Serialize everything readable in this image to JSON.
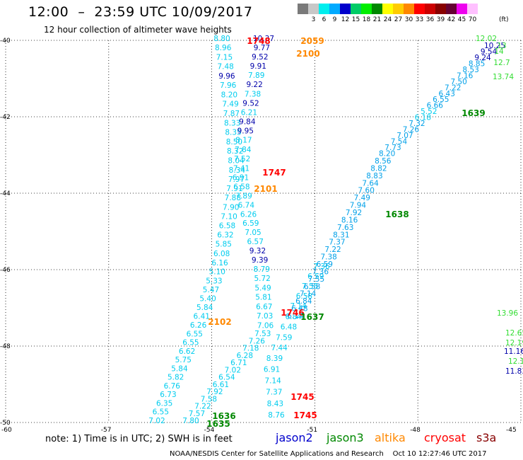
{
  "title": "12:00  –  23:59 UTC 10/09/2017",
  "subtitle": "12 hour collection of altimeter wave heights",
  "colorbar": {
    "unit": "(ft)",
    "bins": [
      {
        "label": "",
        "color": "#7a7a7a"
      },
      {
        "label": "3",
        "color": "#c8c8c8"
      },
      {
        "label": "6",
        "color": "#00eeee"
      },
      {
        "label": "9",
        "color": "#00aaff"
      },
      {
        "label": "12",
        "color": "#0000cc"
      },
      {
        "label": "15",
        "color": "#00cc66"
      },
      {
        "label": "18",
        "color": "#00ee00"
      },
      {
        "label": "21",
        "color": "#008800"
      },
      {
        "label": "24",
        "color": "#ffff00"
      },
      {
        "label": "27",
        "color": "#ffcc00"
      },
      {
        "label": "30",
        "color": "#ff8800"
      },
      {
        "label": "33",
        "color": "#ff0000"
      },
      {
        "label": "36",
        "color": "#cc0000"
      },
      {
        "label": "39",
        "color": "#880000"
      },
      {
        "label": "42",
        "color": "#660033"
      },
      {
        "label": "45",
        "color": "#ee00ee"
      },
      {
        "label": "70",
        "color": "#ffc0ff"
      }
    ]
  },
  "map": {
    "lon_range": [
      -60,
      -45
    ],
    "lat_range": [
      -50,
      -40
    ],
    "lat_ticks": [
      "-40",
      "-42",
      "-44",
      "-46",
      "-48",
      "-50"
    ],
    "lon_ticks": [
      "-60",
      "-57",
      "-54",
      "-51",
      "-48",
      "-45"
    ],
    "grid": "dotted"
  },
  "satellite_colors": {
    "jason2": "#0000cc",
    "jason3": "#008800",
    "altika": "#ff8800",
    "cryosat": "#ff0000",
    "s3a": "#880000",
    "band_light": "#00ccee",
    "band_mid": "#00a0e8",
    "band_dark": "#0000aa",
    "band_green": "#33dd33"
  },
  "tracks": {
    "track_a": {
      "values": [
        "8.80",
        "8.96",
        "7.15",
        "7.48",
        "9.96",
        "7.96",
        "8.20",
        "7.49",
        "7.87",
        "8.33",
        "8.35",
        "8.50",
        "8.32",
        "8.04",
        "8.34",
        "7.97",
        "7.91",
        "7.88",
        "7.90",
        "7.10",
        "6.58",
        "6.32",
        "5.85",
        "6.08",
        "6.16",
        "5.10",
        "5.33",
        "5.47",
        "5.40",
        "5.84",
        "6.41",
        "6.26",
        "6.55",
        "6.55",
        "6.62",
        "5.75",
        "5.84",
        "5.82",
        "6.76",
        "6.73",
        "6.35",
        "6.55",
        "7.02"
      ],
      "colors": [
        "l",
        "l",
        "l",
        "l",
        "d",
        "l",
        "l",
        "l",
        "l",
        "l",
        "l",
        "l",
        "l",
        "l",
        "l",
        "l",
        "l",
        "l",
        "l",
        "l",
        "l",
        "l",
        "l",
        "l",
        "l",
        "l",
        "l",
        "l",
        "l",
        "l",
        "l",
        "l",
        "l",
        "l",
        "l",
        "l",
        "l",
        "l",
        "l",
        "l",
        "l",
        "l",
        "l"
      ]
    },
    "track_b": {
      "values": [
        "10.37",
        "9.77",
        "9.52",
        "9.91",
        "7.89",
        "9.22",
        "7.38",
        "9.52",
        "6.21",
        "9.84",
        "9.95",
        "8.17",
        "7.84",
        "7.52",
        "7.41",
        "6.91",
        "6.58",
        "7.89",
        "6.74",
        "6.26",
        "6.59",
        "7.05",
        "6.57",
        "9.32",
        "9.39",
        "8.79",
        "5.72",
        "5.49",
        "5.81",
        "6.67",
        "7.03",
        "7.06",
        "7.53",
        "7.26",
        "7.18",
        "6.28",
        "6.71",
        "7.02",
        "6.54",
        "6.61",
        "7.92",
        "7.58",
        "7.22",
        "7.57",
        "7.80"
      ],
      "colors": [
        "d",
        "d",
        "d",
        "d",
        "l",
        "d",
        "l",
        "d",
        "l",
        "d",
        "d",
        "l",
        "l",
        "l",
        "l",
        "l",
        "l",
        "l",
        "l",
        "l",
        "l",
        "l",
        "l",
        "d",
        "d",
        "l",
        "l",
        "l",
        "l",
        "l",
        "l",
        "l",
        "l",
        "l",
        "l",
        "l",
        "l",
        "l",
        "l",
        "l",
        "l",
        "l",
        "l",
        "l",
        "l"
      ]
    },
    "track_c": {
      "values": [
        "7.36",
        "6.59",
        "7.55",
        "6.58",
        "7.14",
        "6.84",
        "6.48",
        "7.59",
        "7.44",
        "8.39",
        "6.91",
        "7.14",
        "7.37",
        "8.43",
        "8.76"
      ],
      "colors": [
        "l",
        "l",
        "l",
        "l",
        "l",
        "l",
        "l",
        "l",
        "l",
        "l",
        "l",
        "l",
        "l",
        "l",
        "l"
      ]
    },
    "track_d": {
      "values": [
        "10.25",
        "9.54",
        "9.24",
        "8.85",
        "8.53",
        "7.16",
        "7.50",
        "7.22",
        "6.43",
        "6.55",
        "6.66",
        "5.52",
        "6.18",
        "7.32",
        "7.26",
        "7.07",
        "7.54",
        "7.73",
        "8.20",
        "8.56",
        "8.82",
        "8.83",
        "7.64",
        "7.60",
        "7.49",
        "7.94",
        "7.92",
        "8.16",
        "7.63",
        "8.31",
        "7.37",
        "7.22",
        "7.38",
        "6.59",
        "7.36",
        "7.55",
        "6.58",
        "7.14",
        "6.84",
        "6.48",
        "6.14"
      ],
      "colors": [
        "d",
        "d",
        "d",
        "m",
        "m",
        "m",
        "m",
        "m",
        "m",
        "m",
        "m",
        "l",
        "l",
        "m",
        "m",
        "m",
        "m",
        "m",
        "m",
        "m",
        "m",
        "m",
        "m",
        "m",
        "m",
        "m",
        "m",
        "m",
        "m",
        "m",
        "m",
        "m",
        "m",
        "m",
        "m",
        "m",
        "m",
        "m",
        "m",
        "m",
        "m"
      ]
    },
    "track_e": {
      "values": [
        "12.02",
        "13",
        "14",
        "12.7",
        "13.74",
        "13.96",
        "12.65",
        "12.19",
        "11.16",
        "12.16",
        "11.83"
      ],
      "colors": [
        "g",
        "g",
        "g",
        "g",
        "g",
        "g",
        "g",
        "g",
        "d",
        "g",
        "d"
      ]
    }
  },
  "time_labels": [
    {
      "text": "1748",
      "sat": "cryosat"
    },
    {
      "text": "2059",
      "sat": "altika"
    },
    {
      "text": "2100",
      "sat": "altika"
    },
    {
      "text": "1747",
      "sat": "cryosat"
    },
    {
      "text": "2101",
      "sat": "altika"
    },
    {
      "text": "1639",
      "sat": "jason3"
    },
    {
      "text": "1638",
      "sat": "jason3"
    },
    {
      "text": "1746",
      "sat": "cryosat"
    },
    {
      "text": "1637",
      "sat": "jason3"
    },
    {
      "text": "2102",
      "sat": "altika"
    },
    {
      "text": "1745",
      "sat": "cryosat"
    },
    {
      "text": "1745",
      "sat": "cryosat"
    },
    {
      "text": "1636",
      "sat": "jason3"
    },
    {
      "text": "1635",
      "sat": "jason3"
    }
  ],
  "note": "note: 1) Time is in UTC; 2) SWH is in feet",
  "legend": [
    {
      "name": "jason2",
      "color": "#0000cc"
    },
    {
      "name": "jason3",
      "color": "#008800"
    },
    {
      "name": "altika",
      "color": "#ff8800"
    },
    {
      "name": "cryosat",
      "color": "#ff0000"
    },
    {
      "name": "s3a",
      "color": "#880000"
    }
  ],
  "footer": "NOAA/NESDIS Center for Satellite Applications and Research    Oct 10 12:27:46 UTC 2017"
}
